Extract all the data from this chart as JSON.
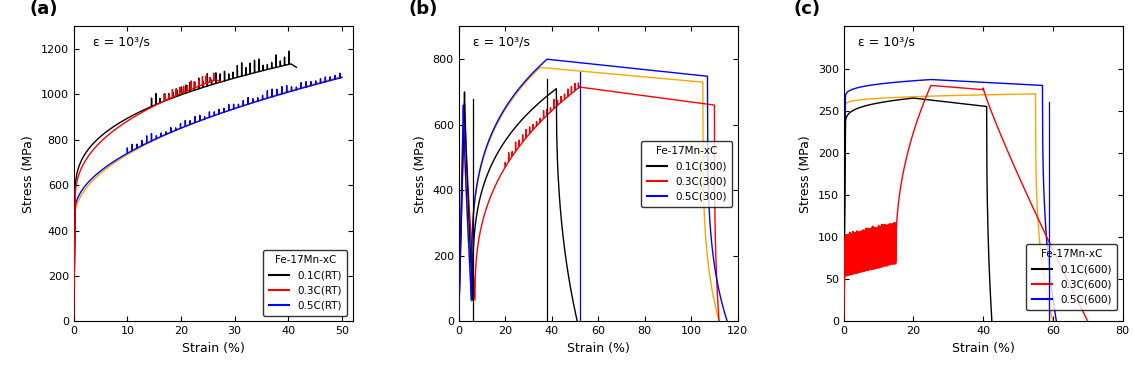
{
  "title_a": "(a)",
  "title_b": "(b)",
  "title_c": "(c)",
  "strain_label": "Strain (%)",
  "stress_label": "Stress (MPa)",
  "annotation": "ε = 10³/s",
  "legend_title": "Fe-17Mn-xC",
  "panel_a": {
    "xlim": [
      0,
      52
    ],
    "ylim": [
      0,
      1300
    ],
    "xticks": [
      0,
      10,
      20,
      30,
      40,
      50
    ],
    "yticks": [
      0,
      200,
      400,
      600,
      800,
      1000,
      1200
    ],
    "legend_labels": [
      "0.1C(RT)",
      "0.3C(RT)",
      "0.5C(RT)"
    ],
    "colors": [
      "#000000",
      "#ff0000",
      "#0000ff"
    ],
    "orange_color": "#ffa500",
    "legend_loc": "lower right"
  },
  "panel_b": {
    "xlim": [
      0,
      120
    ],
    "ylim": [
      0,
      900
    ],
    "xticks": [
      0,
      20,
      40,
      60,
      80,
      100,
      120
    ],
    "yticks": [
      0,
      200,
      400,
      600,
      800
    ],
    "legend_labels": [
      "0.1C(300)",
      "0.3C(300)",
      "0.5C(300)"
    ],
    "colors": [
      "#000000",
      "#ff0000",
      "#0000ff"
    ],
    "orange_color": "#ffa500",
    "legend_loc": "center right"
  },
  "panel_c": {
    "xlim": [
      0,
      80
    ],
    "ylim": [
      0,
      350
    ],
    "xticks": [
      0,
      20,
      40,
      60,
      80
    ],
    "yticks": [
      0,
      50,
      100,
      150,
      200,
      250,
      300
    ],
    "legend_labels": [
      "0.1C(600)",
      "0.3C(600)",
      "0.5C(600)"
    ],
    "colors": [
      "#000000",
      "#ff0000",
      "#0000ff"
    ],
    "orange_color": "#ffa500",
    "legend_loc": "lower right"
  }
}
